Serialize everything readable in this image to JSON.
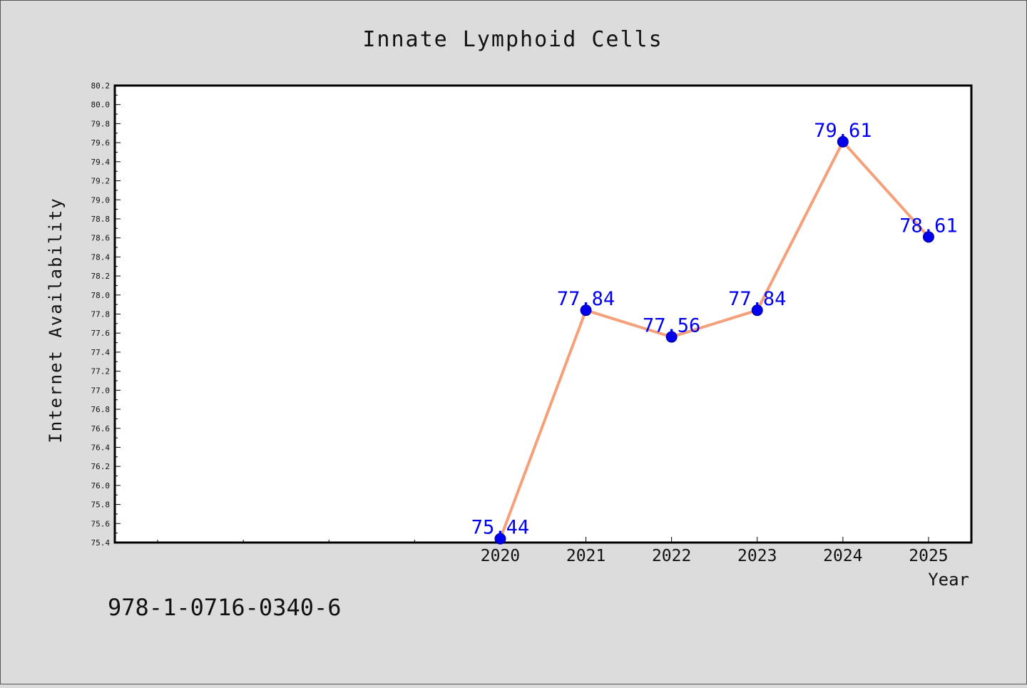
{
  "chart_data": {
    "type": "line",
    "title": "Innate Lymphoid Cells",
    "xlabel": "Year",
    "ylabel": "Internet Availability",
    "x": [
      2020,
      2021,
      2022,
      2023,
      2024,
      2025
    ],
    "x_tick_labels": [
      "2020",
      "2021",
      "2022",
      "2023",
      "2024",
      "2025"
    ],
    "series": [
      {
        "values": [
          75.44,
          77.84,
          77.56,
          77.84,
          79.61,
          78.61
        ],
        "labels": [
          "75.44",
          "77.84",
          "77.56",
          "77.84",
          "79.61",
          "78.61"
        ]
      }
    ],
    "ylim": [
      75.4,
      80.2
    ],
    "xlim": [
      2015.5,
      2025.5
    ],
    "y_ticks": [
      "75.4",
      "75.6",
      "75.8",
      "76.0",
      "76.2",
      "76.4",
      "76.6",
      "76.8",
      "77.0",
      "77.2",
      "77.4",
      "77.6",
      "77.8",
      "78.0",
      "78.2",
      "78.4",
      "78.6",
      "78.8",
      "79.0",
      "79.2",
      "79.4",
      "79.6",
      "79.8",
      "80.0",
      "80.2"
    ],
    "grid": false,
    "colors": {
      "line": "#f4a07a",
      "marker": "#0000ee",
      "label": "#0000ee",
      "background": "#dcdcdc",
      "plot_bg": "#ffffff"
    }
  },
  "footer": {
    "identifier": "978-1-0716-0340-6"
  }
}
